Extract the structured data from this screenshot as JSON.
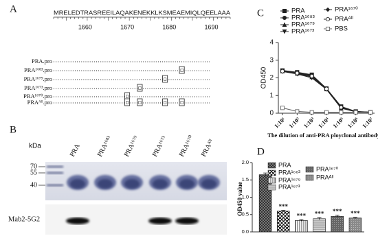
{
  "panel_a": {
    "label": "A",
    "sequence": "MRELEDTRASREEILAQAKENEKKLKSMEAEMIQLQEELAAA",
    "positions": [
      "1660",
      "1670",
      "1680",
      "1690"
    ],
    "rows": [
      "PRA.pro",
      "PRA¹⁶⁸³.pro",
      "PRA¹⁶⁷⁹.pro",
      "PRA¹⁶⁷³.pro",
      "PRA¹⁶⁷⁰.pro",
      "PRAᴬˡˡ.pro"
    ]
  },
  "panel_b": {
    "label": "B",
    "unit": "kDa",
    "markers": [
      "70",
      "55",
      "40"
    ],
    "lanes": [
      "PRA",
      "PRA¹⁶⁸³",
      "PRA¹⁶⁷⁹",
      "PRA¹⁶⁷³",
      "PRA¹⁶⁷⁰",
      "PRAᴬˡˡ"
    ],
    "antibody": "Mab2-5G2"
  },
  "chart_data": [
    {
      "type": "line",
      "panel_label": "C",
      "y_label": "OD450",
      "x_label": "The dilution of anti-PRA ployclonal antibody",
      "categories": [
        "1:10¹",
        "1:10²",
        "1:10³",
        "1:10⁴",
        "1:10⁵",
        "1:10⁶",
        "1:10⁷"
      ],
      "ylim": [
        0,
        4
      ],
      "yticks": [
        0,
        1,
        2,
        3,
        4
      ],
      "series": [
        {
          "name": "PRA",
          "color": "#222222",
          "marker": "square",
          "values": [
            2.42,
            2.32,
            2.18,
            1.4,
            0.38,
            0.1,
            0.06
          ]
        },
        {
          "name": "PRA¹⁶⁸³",
          "color": "#222222",
          "marker": "circle",
          "values": [
            2.4,
            2.28,
            2.12,
            1.38,
            0.35,
            0.09,
            0.05
          ]
        },
        {
          "name": "PRA¹⁶⁷⁹",
          "color": "#222222",
          "marker": "triangle",
          "values": [
            2.38,
            2.25,
            2.05,
            1.36,
            0.3,
            0.08,
            0.05
          ]
        },
        {
          "name": "PRA¹⁶⁷³",
          "color": "#222222",
          "marker": "triangle-down",
          "values": [
            2.36,
            2.22,
            2.0,
            1.35,
            0.28,
            0.08,
            0.05
          ]
        },
        {
          "name": "PRA¹⁶⁷⁰",
          "color": "#222222",
          "marker": "diamond",
          "values": [
            2.4,
            2.3,
            2.15,
            1.4,
            0.36,
            0.09,
            0.05
          ]
        },
        {
          "name": "PRAᴬˡˡ",
          "color": "#222222",
          "marker": "circle-open",
          "values": [
            2.38,
            2.27,
            2.1,
            1.38,
            0.33,
            0.08,
            0.05
          ]
        },
        {
          "name": "PBS",
          "color": "#666666",
          "marker": "square-open",
          "values": [
            0.3,
            0.1,
            0.05,
            0.05,
            0.05,
            0.05,
            0.05
          ]
        }
      ]
    },
    {
      "type": "bar",
      "panel_label": "D",
      "y_label": "OD450 value",
      "categories": [
        "PRA",
        "PRA¹⁶⁸³",
        "PRA¹⁶⁷⁹",
        "PRA¹⁶⁷³",
        "PRA¹⁶⁷⁰",
        "PRAᴬˡˡ"
      ],
      "values": [
        1.65,
        0.6,
        0.33,
        0.38,
        0.45,
        0.4
      ],
      "errors": [
        0.05,
        0.02,
        0.02,
        0.03,
        0.03,
        0.02
      ],
      "annotations": [
        null,
        "***",
        "***",
        "***",
        "***",
        "***"
      ],
      "ylim": [
        0,
        2
      ],
      "yticks": [
        {
          "value": 0,
          "label": "0.0"
        },
        0.5,
        {
          "value": 1,
          "label": "1.0"
        },
        1.5,
        {
          "value": 2,
          "label": "2.0"
        }
      ]
    }
  ]
}
